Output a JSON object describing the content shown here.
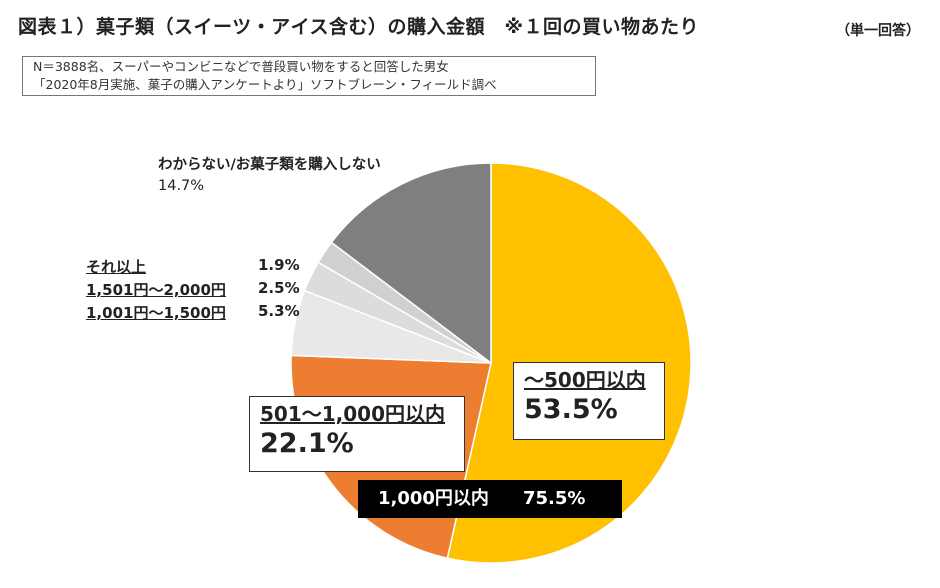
{
  "header": {
    "title": "図表１）菓子類（スイーツ・アイス含む）の購入金額　※１回の買い物あたり",
    "answer_type": "（単一回答）"
  },
  "source": {
    "line1": "N＝3888名、スーパーやコンビニなどで普段買い物をすると回答した男女",
    "line2": "「2020年8月実施、菓子の購入アンケートより」ソフトブレーン・フィールド調べ"
  },
  "summary": {
    "label": "1,000円以内",
    "value": "75.5%"
  },
  "chart_data": {
    "type": "pie",
    "start_angle_deg": 0,
    "direction": "clockwise",
    "slices": [
      {
        "label": "～500円以内",
        "value": 53.5,
        "display": "53.5%",
        "color": "#FFC000"
      },
      {
        "label": "501～1,000円以内",
        "value": 22.1,
        "display": "22.1%",
        "color": "#ED7D31"
      },
      {
        "label": "1,001円～1,500円",
        "value": 5.3,
        "display": "5.3%",
        "color": "#E8E8E8"
      },
      {
        "label": "1,501円～2,000円",
        "value": 2.5,
        "display": "2.5%",
        "color": "#DCDCDC"
      },
      {
        "label": "それ以上",
        "value": 1.9,
        "display": "1.9%",
        "color": "#D0D0D0"
      },
      {
        "label": "わからない/お菓子類を購入しない",
        "value": 14.7,
        "display": "14.7%",
        "color": "#7F7F7F"
      }
    ]
  }
}
